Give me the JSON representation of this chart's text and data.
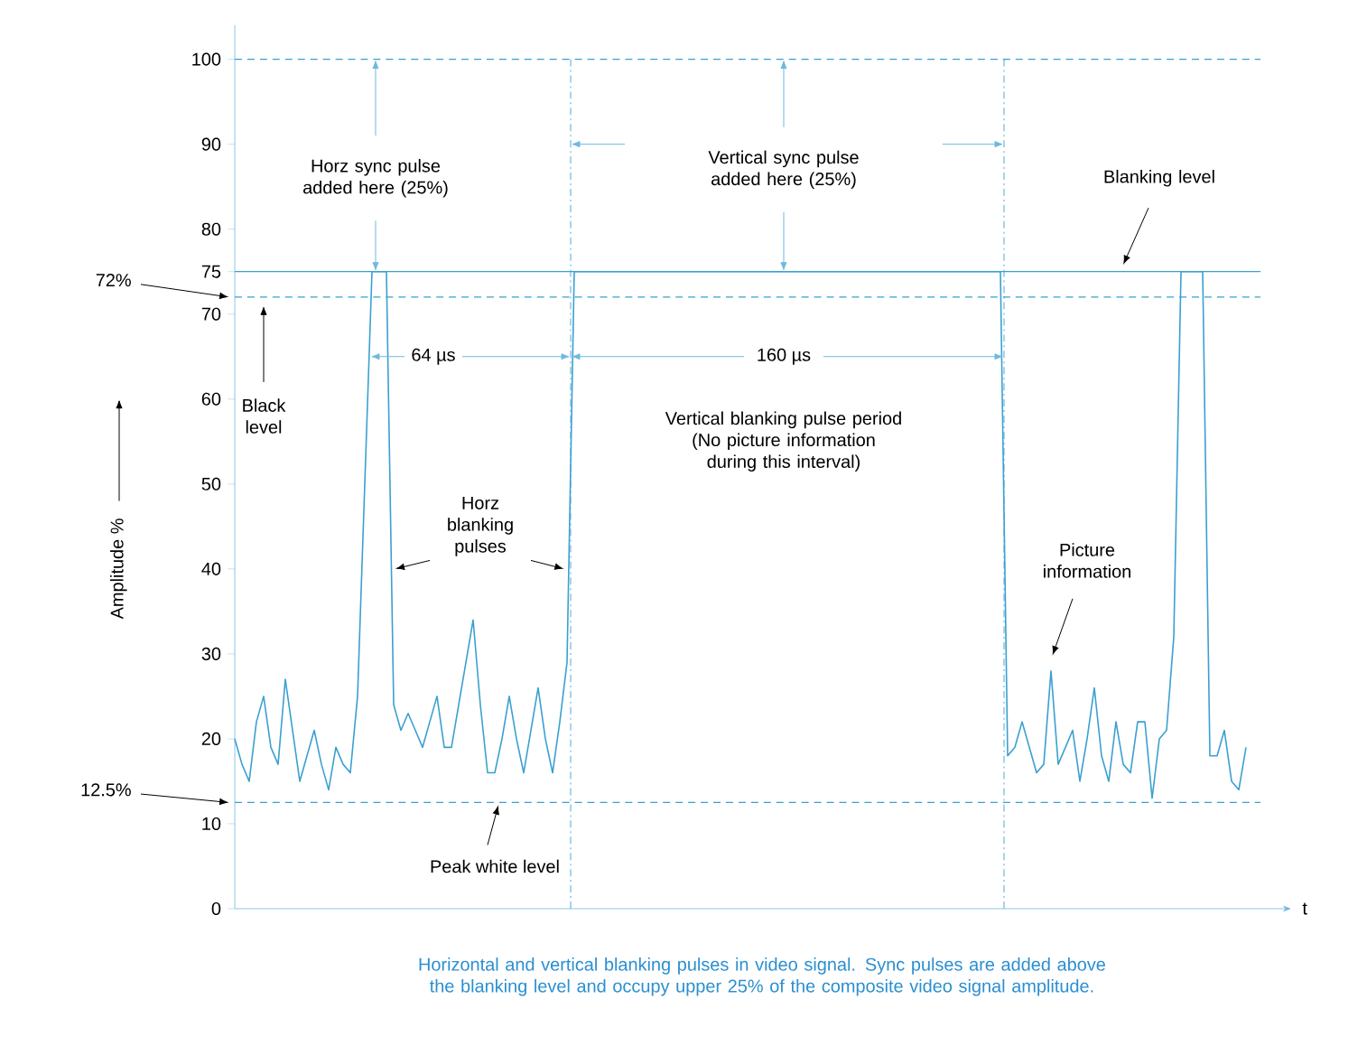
{
  "chart_data": {
    "type": "line",
    "xlabel": "t",
    "ylabel": "Amplitude %",
    "categories": [
      null,
      null,
      null,
      null,
      null,
      null,
      null,
      null,
      null,
      null,
      null,
      null,
      null,
      null,
      null,
      null,
      null,
      null,
      null,
      null,
      null,
      null,
      null,
      null,
      null,
      null,
      null,
      null,
      null,
      null,
      null,
      null,
      null,
      null,
      null,
      null,
      null,
      null,
      null,
      null,
      null,
      null,
      null,
      null,
      null,
      null,
      null,
      null,
      null,
      null,
      null,
      null,
      null,
      null,
      null,
      null,
      null,
      null,
      null,
      null,
      null,
      null,
      null,
      null,
      null,
      null,
      null,
      null,
      null,
      null,
      null,
      null,
      null,
      null,
      null,
      null,
      null,
      null,
      null,
      null,
      null,
      null,
      null,
      null,
      null,
      null,
      null,
      null,
      null,
      null,
      null,
      null,
      null,
      null,
      null,
      null,
      null,
      null,
      null,
      null,
      null,
      null,
      null,
      null,
      null,
      null,
      null,
      null,
      null,
      null,
      null,
      null,
      null,
      null,
      null,
      null,
      null,
      null,
      null,
      null,
      null,
      null,
      null,
      null,
      null,
      null,
      null,
      null,
      null,
      null,
      null,
      null,
      null,
      null,
      null,
      null,
      null,
      null,
      null,
      null,
      null
    ],
    "series": [
      {
        "color": "#3aa0d0",
        "values": [
          20,
          17,
          15,
          22,
          25,
          19,
          17,
          27,
          21,
          15,
          18,
          21,
          17,
          14,
          19,
          17,
          16,
          25,
          50,
          75,
          75,
          75,
          24,
          21,
          23,
          21,
          19,
          22,
          25,
          19,
          19,
          24,
          29,
          34,
          24,
          16,
          16,
          20,
          25,
          20,
          16,
          21,
          26,
          20,
          16,
          22,
          29,
          75,
          75,
          75,
          75,
          75,
          75,
          75,
          75,
          75,
          75,
          75,
          75,
          75,
          75,
          75,
          75,
          75,
          75,
          75,
          75,
          75,
          75,
          75,
          75,
          75,
          75,
          75,
          75,
          75,
          75,
          75,
          75,
          75,
          75,
          75,
          75,
          75,
          75,
          75,
          75,
          75,
          75,
          75,
          75,
          75,
          75,
          75,
          75,
          75,
          75,
          75,
          75,
          75,
          75,
          75,
          75,
          75,
          75,
          75,
          75,
          18,
          19,
          22,
          19,
          16,
          17,
          28,
          17,
          19,
          21,
          15,
          20,
          26,
          18,
          15,
          22,
          17,
          16,
          22,
          22,
          13,
          20,
          21,
          32,
          75,
          75,
          75,
          75,
          18,
          18,
          21,
          15,
          14,
          19
        ]
      }
    ],
    "ylim": [
      0,
      104
    ],
    "yticks": [
      0,
      10,
      20,
      30,
      40,
      50,
      60,
      70,
      75,
      80,
      90,
      100
    ],
    "grid": false,
    "marker": "none",
    "line_style": "solid",
    "tick_labels": "y",
    "ref_lines": [
      {
        "axis": "y",
        "value": 100,
        "color": "#3aa0d0",
        "line_style": "dashed"
      },
      {
        "axis": "y",
        "value": 75,
        "color": "#3aa0d0",
        "line_style": "solid"
      },
      {
        "axis": "y",
        "value": 72,
        "color": "#3aa0d0",
        "line_style": "dashed"
      },
      {
        "axis": "y",
        "value": 12.5,
        "color": "#3aa0d0",
        "line_style": "dashed"
      }
    ],
    "annotations": [
      "Horz sync pulse added here (25%)",
      "Vertical sync pulse added here (25%)",
      "Blanking level",
      "72%",
      "Black level",
      "64 µs",
      "160 µs",
      "Vertical blanking pulse period (No picture information during this interval)",
      "Horz blanking pulses",
      "Picture information",
      "12.5%",
      "Peak white level",
      "Horizontal and vertical blanking pulses in video signal. Sync pulses are added above the blanking level and occupy upper 25% of the composite video signal amplitude."
    ]
  }
}
